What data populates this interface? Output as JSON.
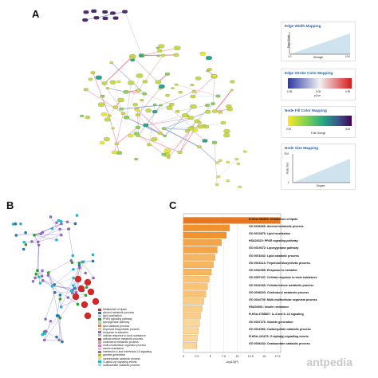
{
  "panels": {
    "a": "A",
    "b": "B",
    "c": "C"
  },
  "legend_a": {
    "edge_width": {
      "title": "Edge Width Mapping",
      "ylabel": "Edge Width",
      "xlabel": "Strength",
      "x_min": "1.0",
      "x_max": "10.0"
    },
    "edge_color": {
      "title": "Edge Stroke Color Mapping",
      "min": "-0.95",
      "mid": "0.00",
      "max": "0.95",
      "axis": "pCorr"
    },
    "node_fill": {
      "title": "Node Fill Color Mapping",
      "min": "0.00",
      "max": "4.00",
      "axis": "Fold Change"
    },
    "node_size": {
      "title": "Node Size Mapping",
      "ylabel": "Node Size",
      "xlabel": "Degree",
      "y_min": "1",
      "y_max": "75.0"
    }
  },
  "legend_b": [
    {
      "label": "Metabolism of lipids",
      "color": "#d62728"
    },
    {
      "label": "alcohol metabolic process",
      "color": "#1f77b4"
    },
    {
      "label": "lipid localization",
      "color": "#aec7e8"
    },
    {
      "label": "PPAR signaling pathway",
      "color": "#2ca02c"
    },
    {
      "label": "lipoxygenase pathway",
      "color": "#98df8a"
    },
    {
      "label": "lipid catabolic process",
      "color": "#ff7f0e"
    },
    {
      "label": "terpenoid biosynthetic process",
      "color": "#ffbb78"
    },
    {
      "label": "response to estradiol",
      "color": "#9467bd"
    },
    {
      "label": "cellular response to toxic substance",
      "color": "#c5b0d5"
    },
    {
      "label": "cellular ketone metabolic process",
      "color": "#8c564b"
    },
    {
      "label": "cholesterol metabolic process",
      "color": "#c49c94"
    },
    {
      "label": "multi-multicellular organism process",
      "color": "#e377c2"
    },
    {
      "label": "insulin resistance",
      "color": "#f7b6d2"
    },
    {
      "label": "Interleukin-4 and Interleukin-13 signaling",
      "color": "#7f7f7f"
    },
    {
      "label": "gamete generation",
      "color": "#bcbd22"
    },
    {
      "label": "carbohydrate catabolic process",
      "color": "#dbdb8d"
    },
    {
      "label": "O-alpha-zyl signaling events",
      "color": "#17becf"
    },
    {
      "label": "oxaloacetate catabolic process",
      "color": "#9edae5"
    }
  ],
  "chart_data": {
    "type": "bar",
    "orientation": "horizontal",
    "xlabel": "-log10(P)",
    "xlim": [
      0,
      17.5
    ],
    "xticks": [
      "0",
      "2.5",
      "5",
      "7.5",
      "10",
      "12.5",
      "15",
      "17.5"
    ],
    "categories": [
      "R-HSA-556833: Metabolism of lipids",
      "GO:0006066: Alcohol metabolic process",
      "GO:0010876: Lipid localization",
      "HSA03320: PPAR signaling pathway",
      "GO:0019372: Lipoxygenase pathway",
      "GO:0016042: Lipid catabolic process",
      "GO:0016114: Terpenoid biosynthetic process",
      "GO:0032355: Response to estradiol",
      "GO:0097237: Cellular response to toxic substance",
      "GO:0042180: Cellular ketone metabolic process",
      "GO:0008203: Cholesterol metabolic process",
      "GO:0044706: Multi-multicellular organism process",
      "HSA04931: Insulin resistance",
      "R-HSA-6785807: IL-4 and IL-13 signaling",
      "GO:0007276: Gamete generation",
      "GO:0016052: Carbohydrate catabolic process",
      "R-HSA-416476: G alpha(q) signalling events",
      "GO:0006434: Oxaloacetate catabolic process"
    ],
    "values": [
      18.0,
      8.6,
      8.0,
      7.1,
      6.3,
      5.9,
      5.6,
      5.2,
      4.8,
      4.5,
      4.2,
      3.8,
      3.5,
      3.2,
      3.0,
      2.8,
      2.6,
      2.5
    ],
    "colors": [
      "#e8761e",
      "#f0932e",
      "#f0932e",
      "#f3a54a",
      "#f3a54a",
      "#f6b65f",
      "#f6b65f",
      "#f6b65f",
      "#f8c374",
      "#f8c374",
      "#f8c374",
      "#f9cd88",
      "#f9cd88",
      "#f9cd88",
      "#fad69a",
      "#fad69a",
      "#fad69a",
      "#fad69a"
    ]
  },
  "watermark": "antpedia"
}
